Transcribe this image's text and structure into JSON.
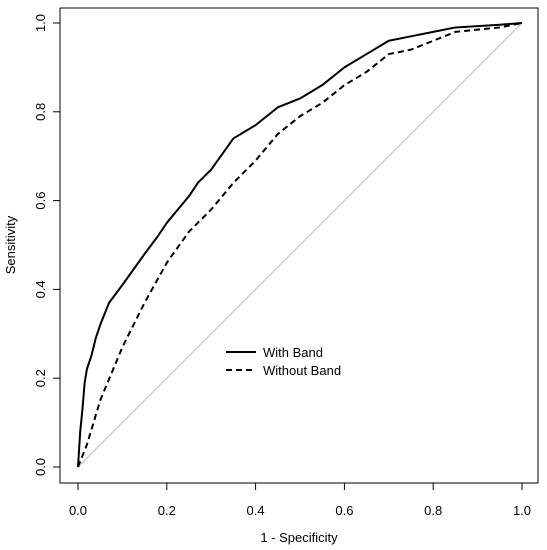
{
  "chart_data": {
    "type": "line",
    "title": "",
    "xlabel": "1 - Specificity",
    "ylabel": "Sensitivity",
    "xlim": [
      0,
      1
    ],
    "ylim": [
      0,
      1
    ],
    "x_ticks": [
      "0.0",
      "0.2",
      "0.4",
      "0.6",
      "0.8",
      "1.0"
    ],
    "y_ticks": [
      "0.0",
      "0.2",
      "0.4",
      "0.6",
      "0.8",
      "1.0"
    ],
    "grid": false,
    "legend_position": "center",
    "reference_line": {
      "x": [
        0,
        1
      ],
      "y": [
        0,
        1
      ],
      "color": "#c0c0c0"
    },
    "series": [
      {
        "name": "With Band",
        "line_style": "solid",
        "color": "#000000",
        "x": [
          0.0,
          0.005,
          0.01,
          0.015,
          0.02,
          0.03,
          0.04,
          0.05,
          0.07,
          0.1,
          0.15,
          0.18,
          0.2,
          0.25,
          0.27,
          0.3,
          0.35,
          0.4,
          0.45,
          0.5,
          0.55,
          0.6,
          0.65,
          0.7,
          0.75,
          0.8,
          0.85,
          0.9,
          0.95,
          1.0
        ],
        "y": [
          0.0,
          0.08,
          0.13,
          0.19,
          0.22,
          0.25,
          0.29,
          0.32,
          0.37,
          0.41,
          0.48,
          0.52,
          0.55,
          0.61,
          0.64,
          0.67,
          0.74,
          0.77,
          0.81,
          0.83,
          0.86,
          0.9,
          0.93,
          0.96,
          0.97,
          0.98,
          0.99,
          0.993,
          0.996,
          1.0
        ]
      },
      {
        "name": "Without Band",
        "line_style": "dashed",
        "color": "#000000",
        "x": [
          0.0,
          0.02,
          0.05,
          0.1,
          0.15,
          0.2,
          0.25,
          0.3,
          0.35,
          0.4,
          0.45,
          0.5,
          0.55,
          0.6,
          0.65,
          0.7,
          0.75,
          0.8,
          0.85,
          0.9,
          0.95,
          1.0
        ],
        "y": [
          0.0,
          0.05,
          0.15,
          0.27,
          0.37,
          0.46,
          0.53,
          0.58,
          0.64,
          0.69,
          0.75,
          0.79,
          0.82,
          0.86,
          0.89,
          0.93,
          0.94,
          0.96,
          0.98,
          0.985,
          0.99,
          1.0
        ]
      }
    ]
  }
}
